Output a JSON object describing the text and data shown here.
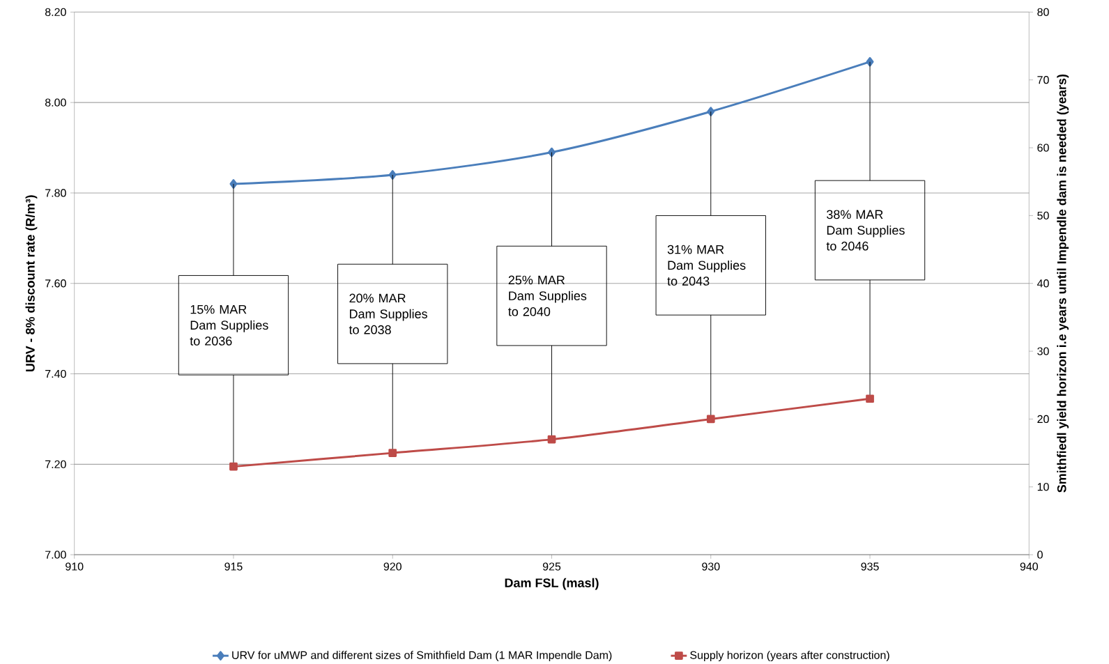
{
  "chart_data": {
    "type": "line",
    "xlabel": "Dam FSL (masl)",
    "ylabel": "URV - 8% discount rate (R/m³)",
    "y2label": "Smithfiedl yield horizon i.e years until Impendle dam is needed (years)",
    "x": [
      915,
      920,
      925,
      930,
      935
    ],
    "series": [
      {
        "name": "URV for uMWP and different sizes of Smithfield Dam (1 MAR Impendle Dam)",
        "color": "#4a7ebb",
        "marker": "diamond",
        "values": [
          7.82,
          7.84,
          7.89,
          7.98,
          8.09
        ]
      },
      {
        "name": "Supply horizon (years after construction)",
        "color": "#be4b48",
        "marker": "square",
        "axis": "y2",
        "values": [
          13,
          15,
          17,
          20,
          23
        ]
      }
    ],
    "xlim": [
      910,
      940
    ],
    "xticks": [
      910,
      915,
      920,
      925,
      930,
      935,
      940
    ],
    "ylim": [
      7.0,
      8.2
    ],
    "yticks": [
      {
        "value": 7.0,
        "label": "7.00"
      },
      {
        "value": 7.2,
        "label": "7.20"
      },
      {
        "value": 7.4,
        "label": "7.40"
      },
      {
        "value": 7.6,
        "label": "7.60"
      },
      {
        "value": 7.8,
        "label": "7.80"
      },
      {
        "value": 8.0,
        "label": "8.00"
      },
      {
        "value": 8.2,
        "label": "8.20"
      }
    ],
    "y2lim": [
      0,
      80
    ],
    "y2ticks": [
      0,
      10,
      20,
      30,
      40,
      50,
      60,
      70,
      80
    ],
    "grid": "y",
    "legend": "bottom",
    "line_style": "solid",
    "annotations": [
      "15% MAR Dam Supplies to 2036",
      "20% MAR Dam Supplies to 2038",
      "25% MAR Dam Supplies to 2040",
      "31% MAR Dam Supplies to 2043",
      "38% MAR Dam Supplies to 2046"
    ]
  }
}
